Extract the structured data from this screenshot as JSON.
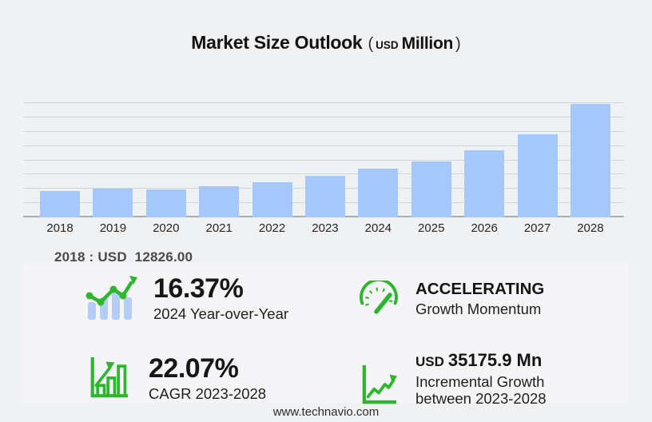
{
  "title": {
    "main": "Market Size Outlook",
    "paren_open": "(",
    "unit_small": "USD",
    "unit_big": "Million",
    "paren_close": ")"
  },
  "chart_data": {
    "type": "bar",
    "title": "Market Size Outlook (USD Million)",
    "categories": [
      "2018",
      "2019",
      "2020",
      "2021",
      "2022",
      "2023",
      "2024",
      "2025",
      "2026",
      "2027",
      "2028"
    ],
    "values": [
      12826.0,
      14330,
      13680,
      15400,
      17450,
      20561.7,
      23927.6,
      27420,
      32840,
      40930,
      55737.6
    ],
    "unit": "USD Million",
    "xlabel": "",
    "ylabel": "",
    "ylim": [
      0,
      56500
    ],
    "grid": "horizontal",
    "legend": "none",
    "bar_color": "#a6c7fa",
    "annotation": "2018 : USD  12826.00"
  },
  "annotation": {
    "label": "2018 : USD  12826.00"
  },
  "stats": {
    "yoy": {
      "value": "16.37%",
      "caption": "2024 Year-over-Year"
    },
    "momentum": {
      "heading": "ACCELERATING",
      "caption": "Growth Momentum"
    },
    "cagr": {
      "value": "22.07%",
      "caption": "CAGR 2023-2028"
    },
    "incremental": {
      "currency": "USD",
      "value": "35175.9 Mn",
      "caption_line1": "Incremental Growth",
      "caption_line2": "between 2023-2028"
    }
  },
  "footer": {
    "url": "www.technavio.com"
  },
  "colors": {
    "background": "#f0f1f3",
    "panel": "#f5f5f7",
    "bar": "#a6c7fa",
    "accent_green": "#2fb52f",
    "gridline": "#d3d4d8",
    "axis_line": "#adaeb3"
  }
}
